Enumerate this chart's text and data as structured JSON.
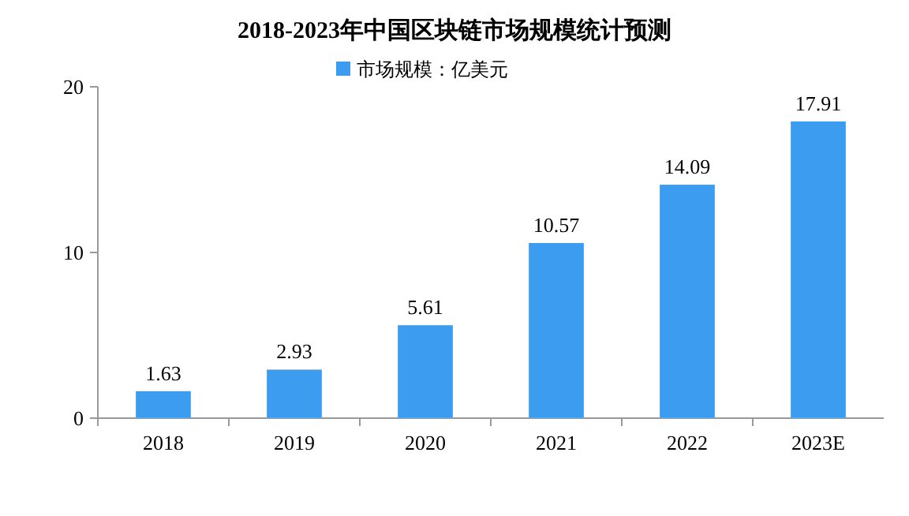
{
  "chart_data": {
    "type": "bar",
    "title": "2018-2023年中国区块链市场规模统计预测",
    "categories": [
      "2018",
      "2019",
      "2020",
      "2021",
      "2022",
      "2023E"
    ],
    "series": [
      {
        "name": "市场规模：亿美元",
        "color": "#3c9cf0",
        "values": [
          1.63,
          2.93,
          5.61,
          10.57,
          14.09,
          17.91
        ]
      }
    ],
    "ylim": [
      0,
      20
    ],
    "yticks": [
      0,
      10,
      20
    ],
    "grid": false,
    "legend": "top",
    "data_labels": true
  }
}
